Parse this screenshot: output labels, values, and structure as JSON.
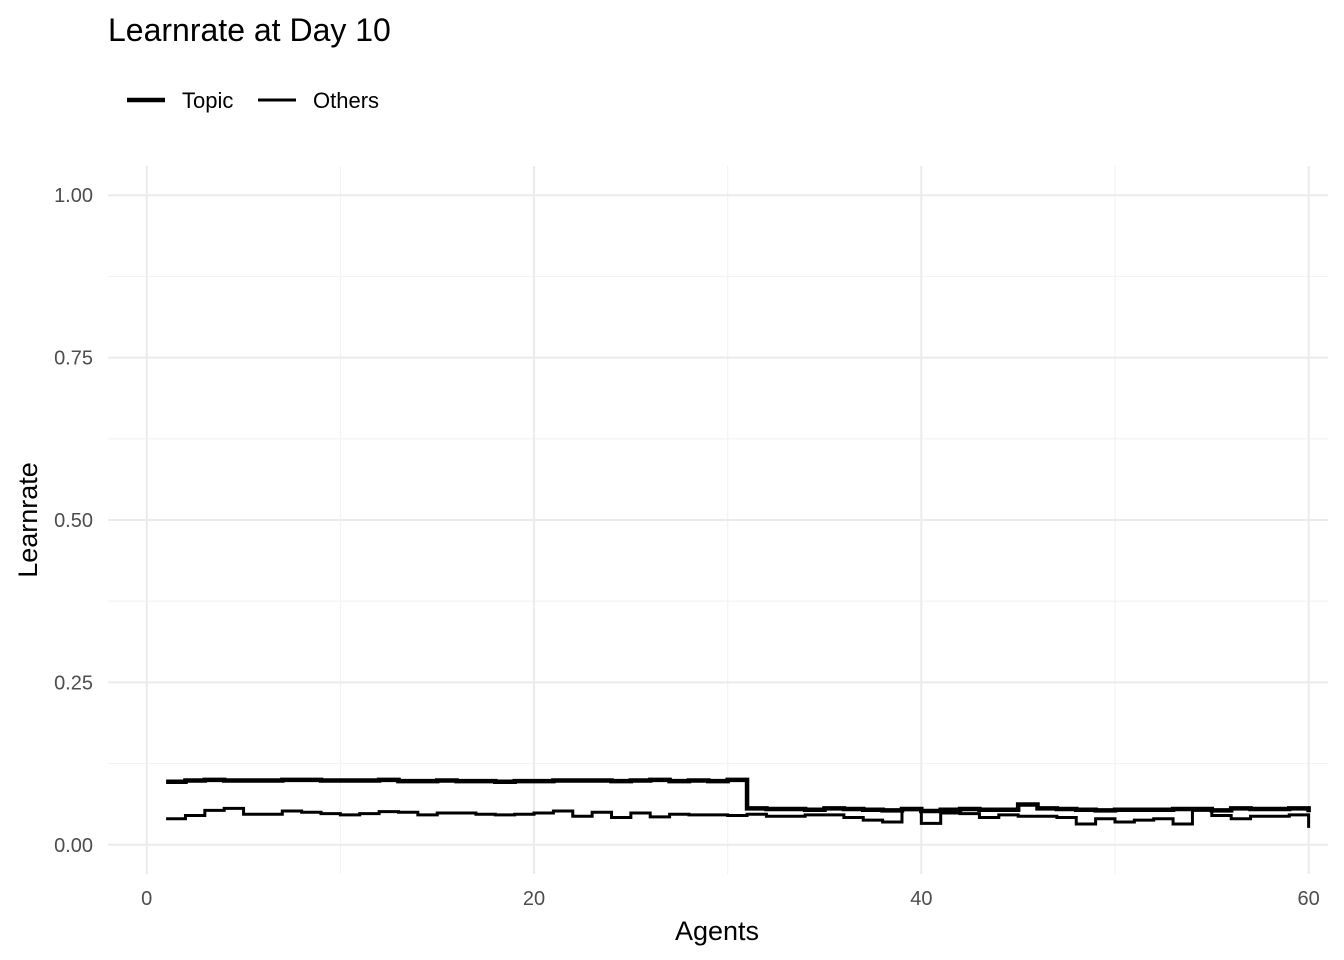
{
  "chart_data": {
    "type": "line",
    "step": true,
    "title": "Learnrate at Day 10",
    "xlabel": "Agents",
    "ylabel": "Learnrate",
    "xlim": [
      -2,
      61
    ],
    "ylim": [
      -0.045,
      1.045
    ],
    "x_ticks": [
      0,
      20,
      40,
      60
    ],
    "x_tick_labels": [
      "0",
      "20",
      "40",
      "60"
    ],
    "y_ticks": [
      0.0,
      0.25,
      0.5,
      0.75,
      1.0
    ],
    "y_tick_labels": [
      "0.00",
      "0.25",
      "0.50",
      "0.75",
      "1.00"
    ],
    "x_minor_ticks": [
      10,
      30,
      50
    ],
    "y_minor_ticks": [
      0.125,
      0.375,
      0.625,
      0.875
    ],
    "grid": true,
    "legend_position": "top-left",
    "line_color": "#000000",
    "x": [
      1,
      2,
      3,
      4,
      5,
      6,
      7,
      8,
      9,
      10,
      11,
      12,
      13,
      14,
      15,
      16,
      17,
      18,
      19,
      20,
      21,
      22,
      23,
      24,
      25,
      26,
      27,
      28,
      29,
      30,
      31,
      32,
      33,
      34,
      35,
      36,
      37,
      38,
      39,
      40,
      41,
      42,
      43,
      44,
      45,
      46,
      47,
      48,
      49,
      50,
      51,
      52,
      53,
      54,
      55,
      56,
      57,
      58,
      59,
      60
    ],
    "series": [
      {
        "name": "Topic",
        "values": [
          0.097,
          0.099,
          0.1,
          0.099,
          0.099,
          0.099,
          0.1,
          0.1,
          0.099,
          0.099,
          0.099,
          0.1,
          0.098,
          0.098,
          0.099,
          0.098,
          0.098,
          0.097,
          0.098,
          0.098,
          0.099,
          0.099,
          0.099,
          0.098,
          0.099,
          0.1,
          0.098,
          0.099,
          0.098,
          0.1,
          0.056,
          0.055,
          0.055,
          0.054,
          0.056,
          0.055,
          0.054,
          0.053,
          0.055,
          0.052,
          0.054,
          0.055,
          0.054,
          0.054,
          0.062,
          0.056,
          0.055,
          0.054,
          0.053,
          0.054,
          0.054,
          0.054,
          0.055,
          0.055,
          0.053,
          0.056,
          0.055,
          0.055,
          0.056,
          0.05
        ]
      },
      {
        "name": "Others",
        "values": [
          0.04,
          0.045,
          0.053,
          0.056,
          0.047,
          0.047,
          0.052,
          0.05,
          0.048,
          0.046,
          0.048,
          0.051,
          0.05,
          0.046,
          0.049,
          0.049,
          0.047,
          0.046,
          0.047,
          0.049,
          0.052,
          0.044,
          0.05,
          0.042,
          0.049,
          0.043,
          0.047,
          0.046,
          0.046,
          0.045,
          0.047,
          0.044,
          0.044,
          0.046,
          0.046,
          0.042,
          0.038,
          0.035,
          0.054,
          0.033,
          0.049,
          0.048,
          0.042,
          0.046,
          0.044,
          0.044,
          0.042,
          0.032,
          0.04,
          0.035,
          0.038,
          0.04,
          0.032,
          0.053,
          0.045,
          0.04,
          0.044,
          0.044,
          0.046,
          0.026
        ]
      }
    ]
  }
}
